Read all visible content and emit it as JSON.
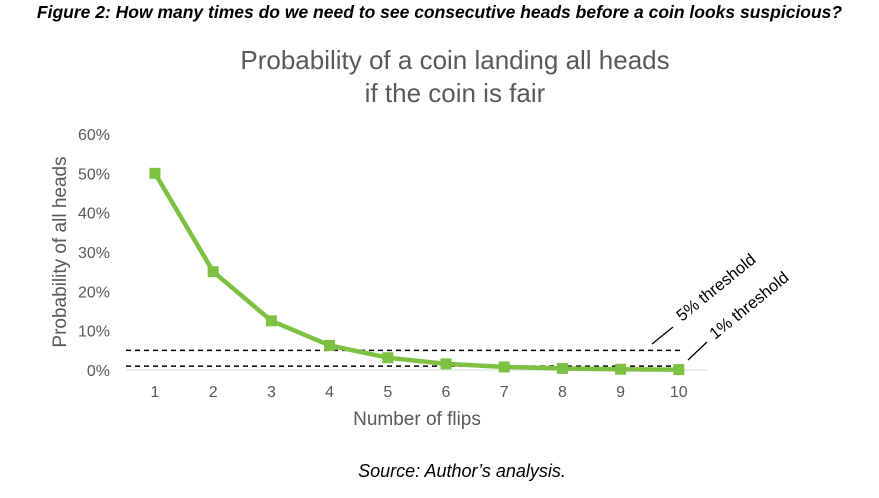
{
  "figure_caption": "Figure 2: How many times do we need to see consecutive heads before a coin looks suspicious?",
  "source": "Source: Author’s analysis.",
  "chart_data": {
    "type": "line",
    "title_lines": [
      "Probability of a coin landing all heads",
      "if the coin is fair"
    ],
    "xlabel": "Number of flips",
    "ylabel": "Probability of all heads",
    "x": [
      1,
      2,
      3,
      4,
      5,
      6,
      7,
      8,
      9,
      10
    ],
    "series": [
      {
        "values": [
          0.5,
          0.25,
          0.125,
          0.0625,
          0.03125,
          0.015625,
          0.0078125,
          0.00390625,
          0.001953125,
          0.0009765625
        ],
        "color": "#7dc142"
      }
    ],
    "ylim": [
      0,
      0.6
    ],
    "yticks": [
      "0%",
      "10%",
      "20%",
      "30%",
      "40%",
      "50%",
      "60%"
    ],
    "reference_lines": [
      {
        "value": 0.05,
        "label": "5% threshold",
        "style": "dashed"
      },
      {
        "value": 0.01,
        "label": "1% threshold",
        "style": "dashed"
      }
    ],
    "grid": false
  }
}
